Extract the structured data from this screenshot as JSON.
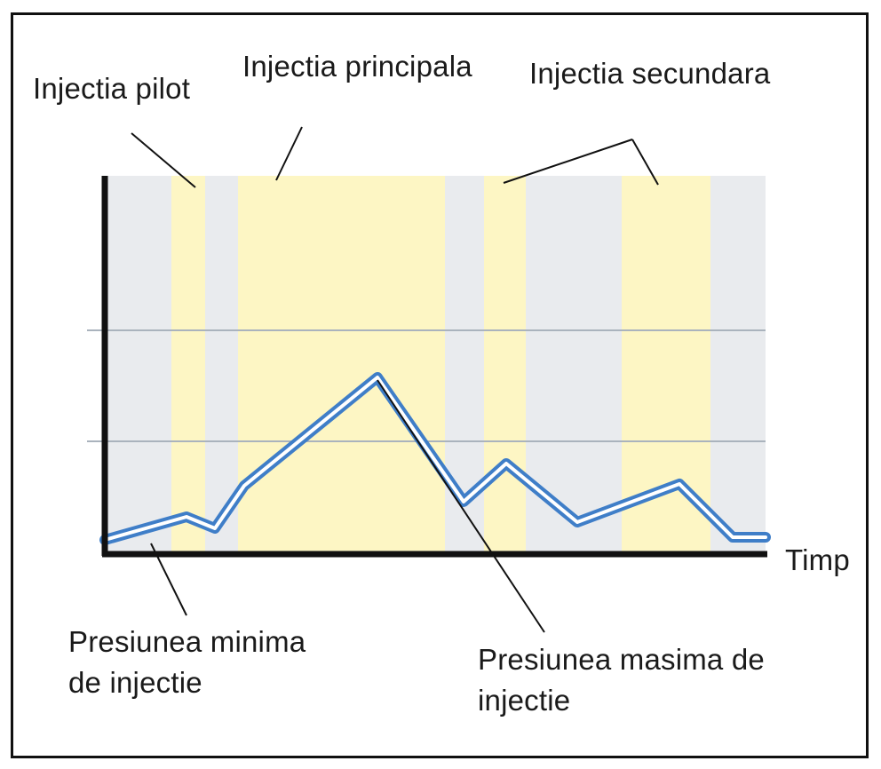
{
  "labels": {
    "pilot": "Injectia pilot",
    "principala": "Injectia principala",
    "secundara": "Injectia secundara",
    "axis_x": "Timp",
    "min_line1": "Presiunea minima",
    "min_line2": "de injectie",
    "max_line1": "Presiunea masima de",
    "max_line2": "injectie"
  },
  "colors": {
    "background_band": "#e9ebee",
    "injection_band": "#fdf6c4",
    "curve_outer": "#3f7ec8",
    "curve_inner": "#ffffff",
    "axis": "#111111",
    "gridline": "#aab3bd"
  }
}
